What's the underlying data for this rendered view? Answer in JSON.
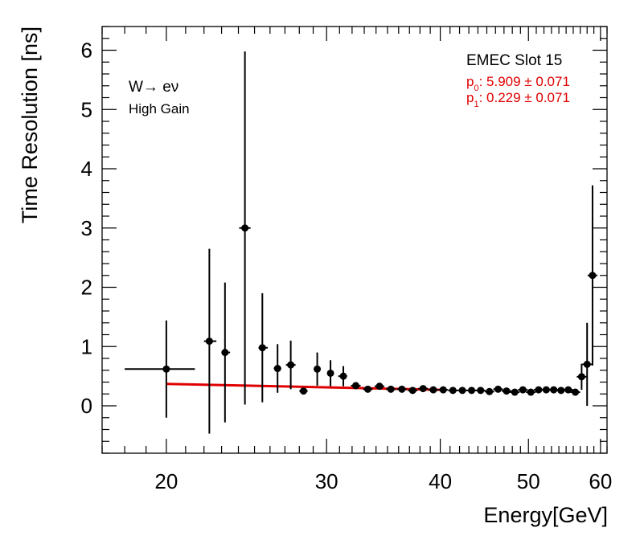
{
  "chart_data": {
    "type": "scatter",
    "xlabel": "Energy[GeV]",
    "ylabel": "Time Resolution [ns]",
    "xscale": "log",
    "xlim": [
      17,
      61
    ],
    "ylim": [
      -0.8,
      6.4
    ],
    "xticks": [
      20,
      30,
      40,
      50,
      60
    ],
    "yticks": [
      0,
      1,
      2,
      3,
      4,
      5,
      6
    ],
    "annotations": {
      "process": "W→ eν",
      "gain": "High Gain",
      "slot": "EMEC Slot 15"
    },
    "fit": {
      "p0_label": "p",
      "p0_sub": "0",
      "p0_text": ": 5.909 ± 0.071",
      "p1_label": "p",
      "p1_sub": "1",
      "p1_text": ": 0.229 ± 0.071",
      "p0": 5.909,
      "p1": 0.229,
      "color": "#e00000",
      "x_range": [
        20,
        40
      ],
      "y_start": 0.37,
      "y_end": 0.27
    },
    "series": [
      {
        "name": "data",
        "color": "#000000",
        "points": [
          {
            "x": 20.0,
            "y": 0.62,
            "xerr": [
              2.0,
              1.5
            ],
            "yerr": 0.82
          },
          {
            "x": 22.3,
            "y": 1.09,
            "xerr": [
              0.3,
              0.4
            ],
            "yerr": 1.56
          },
          {
            "x": 23.2,
            "y": 0.9,
            "xerr": [
              0.2,
              0.3
            ],
            "yerr": 1.18
          },
          {
            "x": 24.4,
            "y": 3.0,
            "xerr": [
              0.35,
              0.35
            ],
            "yerr": 2.98
          },
          {
            "x": 25.5,
            "y": 0.98,
            "xerr": [
              0.25,
              0.35
            ],
            "yerr": 0.92
          },
          {
            "x": 26.5,
            "y": 0.63,
            "xerr": [
              0.25,
              0.25
            ],
            "yerr": 0.41
          },
          {
            "x": 27.4,
            "y": 0.69,
            "xerr": [
              0.0,
              0.0
            ],
            "yerr": 0.41
          },
          {
            "x": 28.3,
            "y": 0.25,
            "xerr": [
              0.3,
              0.3
            ],
            "yerr": 0.04
          },
          {
            "x": 29.3,
            "y": 0.62,
            "xerr": [
              0.25,
              0.25
            ],
            "yerr": 0.28
          },
          {
            "x": 30.3,
            "y": 0.55,
            "xerr": [
              0.2,
              0.2
            ],
            "yerr": 0.22
          },
          {
            "x": 31.3,
            "y": 0.5,
            "xerr": [
              0.4,
              0.3
            ],
            "yerr": 0.17
          },
          {
            "x": 32.3,
            "y": 0.34,
            "xerr": [
              0.0,
              0.0
            ],
            "yerr": 0.05
          },
          {
            "x": 33.3,
            "y": 0.28,
            "xerr": [
              0.0,
              0.0
            ],
            "yerr": 0.04
          },
          {
            "x": 34.3,
            "y": 0.33,
            "xerr": [
              0.0,
              0.0
            ],
            "yerr": 0.03
          },
          {
            "x": 35.3,
            "y": 0.28,
            "xerr": [
              0.0,
              0.0
            ],
            "yerr": 0.03
          },
          {
            "x": 36.3,
            "y": 0.28,
            "xerr": [
              0.0,
              0.0
            ],
            "yerr": 0.03
          },
          {
            "x": 37.3,
            "y": 0.26,
            "xerr": [
              0.0,
              0.0
            ],
            "yerr": 0.03
          },
          {
            "x": 38.3,
            "y": 0.29,
            "xerr": [
              0.0,
              0.0
            ],
            "yerr": 0.03
          },
          {
            "x": 39.3,
            "y": 0.27,
            "xerr": [
              0.0,
              0.0
            ],
            "yerr": 0.03
          },
          {
            "x": 40.3,
            "y": 0.27,
            "xerr": [
              0.0,
              0.0
            ],
            "yerr": 0.03
          },
          {
            "x": 41.3,
            "y": 0.26,
            "xerr": [
              0.0,
              0.0
            ],
            "yerr": 0.03
          },
          {
            "x": 42.3,
            "y": 0.26,
            "xerr": [
              0.0,
              0.0
            ],
            "yerr": 0.03
          },
          {
            "x": 43.3,
            "y": 0.26,
            "xerr": [
              0.0,
              0.0
            ],
            "yerr": 0.03
          },
          {
            "x": 44.3,
            "y": 0.26,
            "xerr": [
              0.0,
              0.0
            ],
            "yerr": 0.03
          },
          {
            "x": 45.3,
            "y": 0.24,
            "xerr": [
              0.0,
              0.0
            ],
            "yerr": 0.03
          },
          {
            "x": 46.3,
            "y": 0.28,
            "xerr": [
              0.0,
              0.0
            ],
            "yerr": 0.03
          },
          {
            "x": 47.3,
            "y": 0.25,
            "xerr": [
              0.0,
              0.0
            ],
            "yerr": 0.03
          },
          {
            "x": 48.3,
            "y": 0.23,
            "xerr": [
              0.0,
              0.0
            ],
            "yerr": 0.03
          },
          {
            "x": 49.3,
            "y": 0.27,
            "xerr": [
              0.0,
              0.0
            ],
            "yerr": 0.03
          },
          {
            "x": 50.3,
            "y": 0.23,
            "xerr": [
              0.0,
              0.0
            ],
            "yerr": 0.03
          },
          {
            "x": 51.3,
            "y": 0.27,
            "xerr": [
              0.0,
              0.0
            ],
            "yerr": 0.03
          },
          {
            "x": 52.3,
            "y": 0.27,
            "xerr": [
              0.0,
              0.0
            ],
            "yerr": 0.03
          },
          {
            "x": 53.3,
            "y": 0.27,
            "xerr": [
              0.0,
              0.0
            ],
            "yerr": 0.03
          },
          {
            "x": 54.3,
            "y": 0.26,
            "xerr": [
              0.0,
              0.0
            ],
            "yerr": 0.03
          },
          {
            "x": 55.3,
            "y": 0.27,
            "xerr": [
              0.0,
              0.0
            ],
            "yerr": 0.03
          },
          {
            "x": 56.3,
            "y": 0.23,
            "xerr": [
              0.0,
              0.0
            ],
            "yerr": 0.03
          },
          {
            "x": 57.2,
            "y": 0.49,
            "xerr": [
              0.0,
              0.0
            ],
            "yerr": 0.22
          },
          {
            "x": 58.0,
            "y": 0.7,
            "xerr": [
              0.0,
              0.0
            ],
            "yerr": 0.7
          },
          {
            "x": 58.8,
            "y": 2.2,
            "xerr": [
              0.0,
              0.0
            ],
            "yerr": 1.52
          }
        ]
      }
    ]
  }
}
